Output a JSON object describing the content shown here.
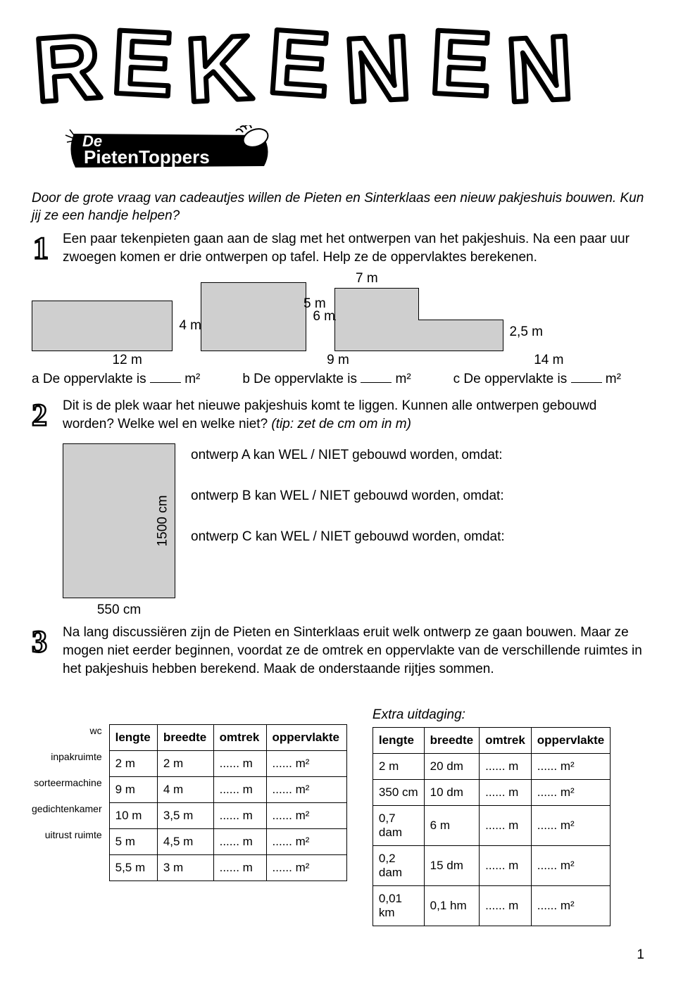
{
  "header": {
    "title_word": "REKENEN",
    "subtitle_line1": "De",
    "subtitle_line2": "PietenToppers"
  },
  "intro": "Door de grote vraag van cadeautjes willen de Pieten en Sinterklaas een nieuw pakjeshuis bouwen. Kun jij ze een handje helpen?",
  "q1": {
    "text": "Een paar tekenpieten gaan aan de slag met het ontwerpen van het pakjeshuis. Na een paar uur zwoegen komen er drie ontwerpen op tafel. Help ze de oppervlaktes berekenen.",
    "a": {
      "w": "12 m",
      "h": "4 m",
      "label": "a De oppervlakte is",
      "unit": "m²"
    },
    "b": {
      "w": "9 m",
      "h": "6 m",
      "label": "b De oppervlakte is",
      "unit": "m²"
    },
    "c": {
      "top_w": "7 m",
      "left_h": "5 m",
      "right_h": "2,5 m",
      "bottom_w": "14 m",
      "label": "c De oppervlakte is",
      "unit": "m²"
    }
  },
  "q2": {
    "text_a": "Dit is de plek waar het nieuwe pakjeshuis komt te liggen. Kunnen alle ontwerpen gebouwd worden? Welke wel en welke niet? ",
    "tip": "(tip: zet de cm om in m)",
    "plot_h": "1500 cm",
    "plot_w": "550 cm",
    "line_a": "ontwerp A kan  WEL / NIET  gebouwd worden, omdat:",
    "line_b": "ontwerp B kan  WEL / NIET  gebouwd worden, omdat:",
    "line_c": "ontwerp C kan  WEL / NIET  gebouwd worden, omdat:"
  },
  "q3": {
    "text": "Na lang discussiëren zijn de Pieten en Sinterklaas eruit welk ontwerp ze gaan bouwen. Maar ze mogen niet eerder beginnen, voordat ze de omtrek en oppervlakte van de verschillende ruimtes in het pakjeshuis hebben berekend. Maak de onderstaande rijtjes sommen.",
    "extra_label": "Extra uitdaging:",
    "headers": [
      "lengte",
      "breedte",
      "omtrek",
      "oppervlakte"
    ],
    "row_labels": [
      "wc",
      "inpakruimte",
      "sorteermachine",
      "gedichtenkamer",
      "uitrust ruimte"
    ],
    "fill_omtrek": "...... m",
    "fill_opp": "...... m²",
    "table1": [
      [
        "2 m",
        "2 m"
      ],
      [
        "9 m",
        "4 m"
      ],
      [
        "10 m",
        "3,5 m"
      ],
      [
        "5 m",
        "4,5 m"
      ],
      [
        "5,5 m",
        "3 m"
      ]
    ],
    "table2": [
      [
        "2 m",
        "20 dm"
      ],
      [
        "350 cm",
        "10 dm"
      ],
      [
        "0,7 dam",
        "6 m"
      ],
      [
        "0,2 dam",
        "15 dm"
      ],
      [
        "0,01 km",
        "0,1 hm"
      ]
    ]
  },
  "page_number": "1"
}
